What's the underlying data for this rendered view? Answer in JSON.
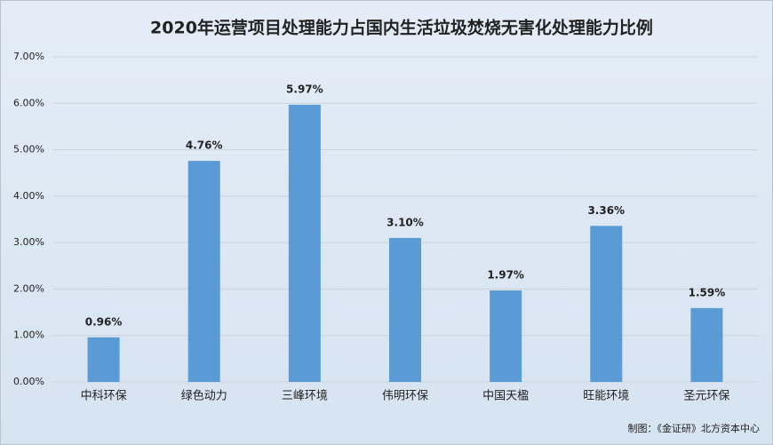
{
  "chart_data": {
    "type": "bar",
    "title": "2020年运营项目处理能力占国内生活垃圾焚烧无害化处理能力比例",
    "categories": [
      "中科环保",
      "绿色动力",
      "三峰环境",
      "伟明环保",
      "中国天楹",
      "旺能环境",
      "圣元环保"
    ],
    "values": [
      0.96,
      4.76,
      5.97,
      3.1,
      1.97,
      3.36,
      1.59
    ],
    "value_labels": [
      "0.96%",
      "4.76%",
      "5.97%",
      "3.10%",
      "1.97%",
      "3.36%",
      "1.59%"
    ],
    "color": "#5b9bd5",
    "ylim": [
      0,
      7
    ],
    "yticks": [
      {
        "value": 0,
        "label": "0.00%"
      },
      {
        "value": 1,
        "label": "1.00%"
      },
      {
        "value": 2,
        "label": "2.00%"
      },
      {
        "value": 3,
        "label": "3.00%"
      },
      {
        "value": 4,
        "label": "4.00%"
      },
      {
        "value": 5,
        "label": "5.00%"
      },
      {
        "value": 6,
        "label": "6.00%"
      },
      {
        "value": 7,
        "label": "7.00%"
      }
    ],
    "grid": true,
    "source": "制图：《金证研》北方资本中心"
  }
}
